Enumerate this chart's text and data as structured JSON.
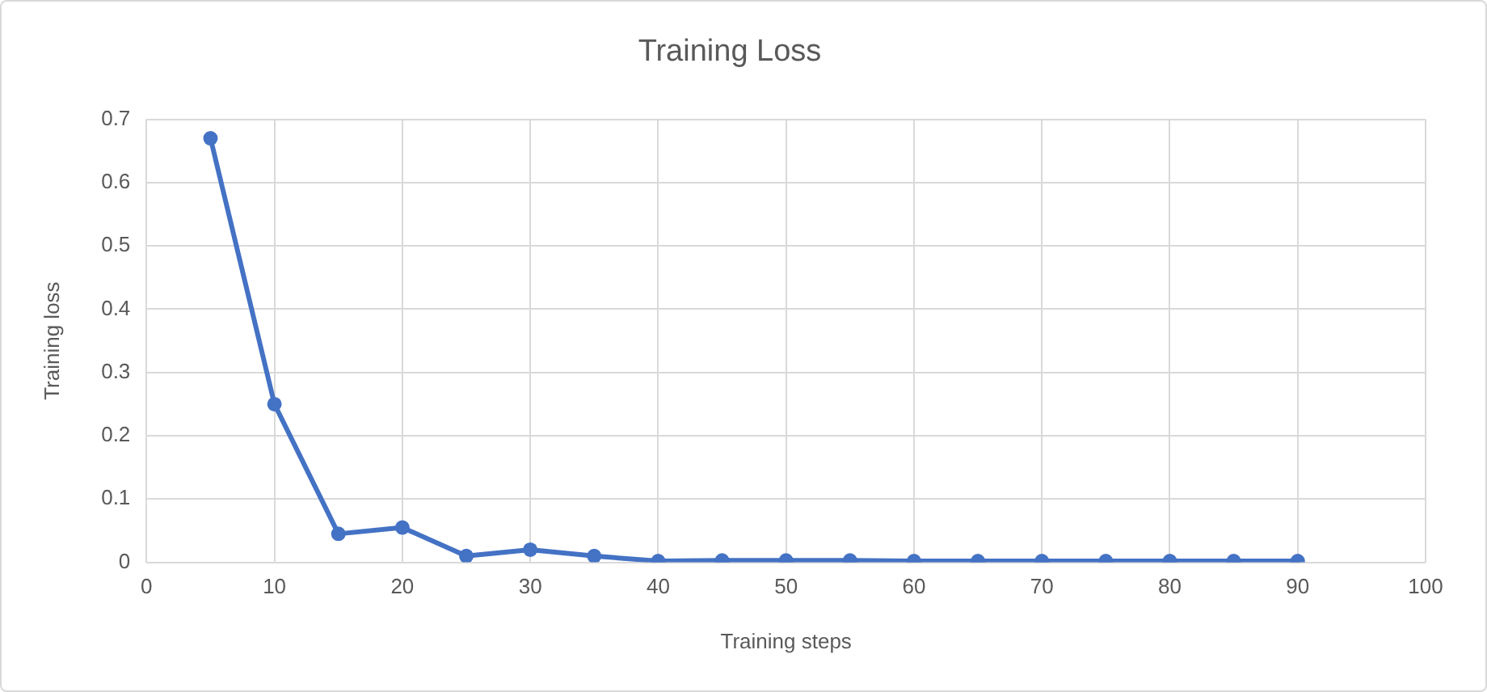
{
  "chart_data": {
    "type": "line",
    "title": "Training Loss",
    "xlabel": "Training steps",
    "ylabel": "Training loss",
    "x": [
      5,
      10,
      15,
      20,
      25,
      30,
      35,
      40,
      45,
      50,
      55,
      60,
      65,
      70,
      75,
      80,
      85,
      90
    ],
    "series": [
      {
        "color": "#4472c4",
        "values": [
          0.67,
          0.25,
          0.045,
          0.055,
          0.01,
          0.02,
          0.01,
          0.002,
          0.003,
          0.003,
          0.003,
          0.002,
          0.002,
          0.002,
          0.002,
          0.002,
          0.002,
          0.002
        ]
      }
    ],
    "xlim": [
      0,
      100
    ],
    "xticks": [
      0,
      10,
      20,
      30,
      40,
      50,
      60,
      70,
      80,
      90,
      100
    ],
    "ylim": [
      0,
      0.7
    ],
    "yticks": [
      0,
      0.1,
      0.2,
      0.3,
      0.4,
      0.5,
      0.6,
      0.7
    ],
    "grid": true,
    "marker": "circle",
    "line_style": "solid"
  }
}
